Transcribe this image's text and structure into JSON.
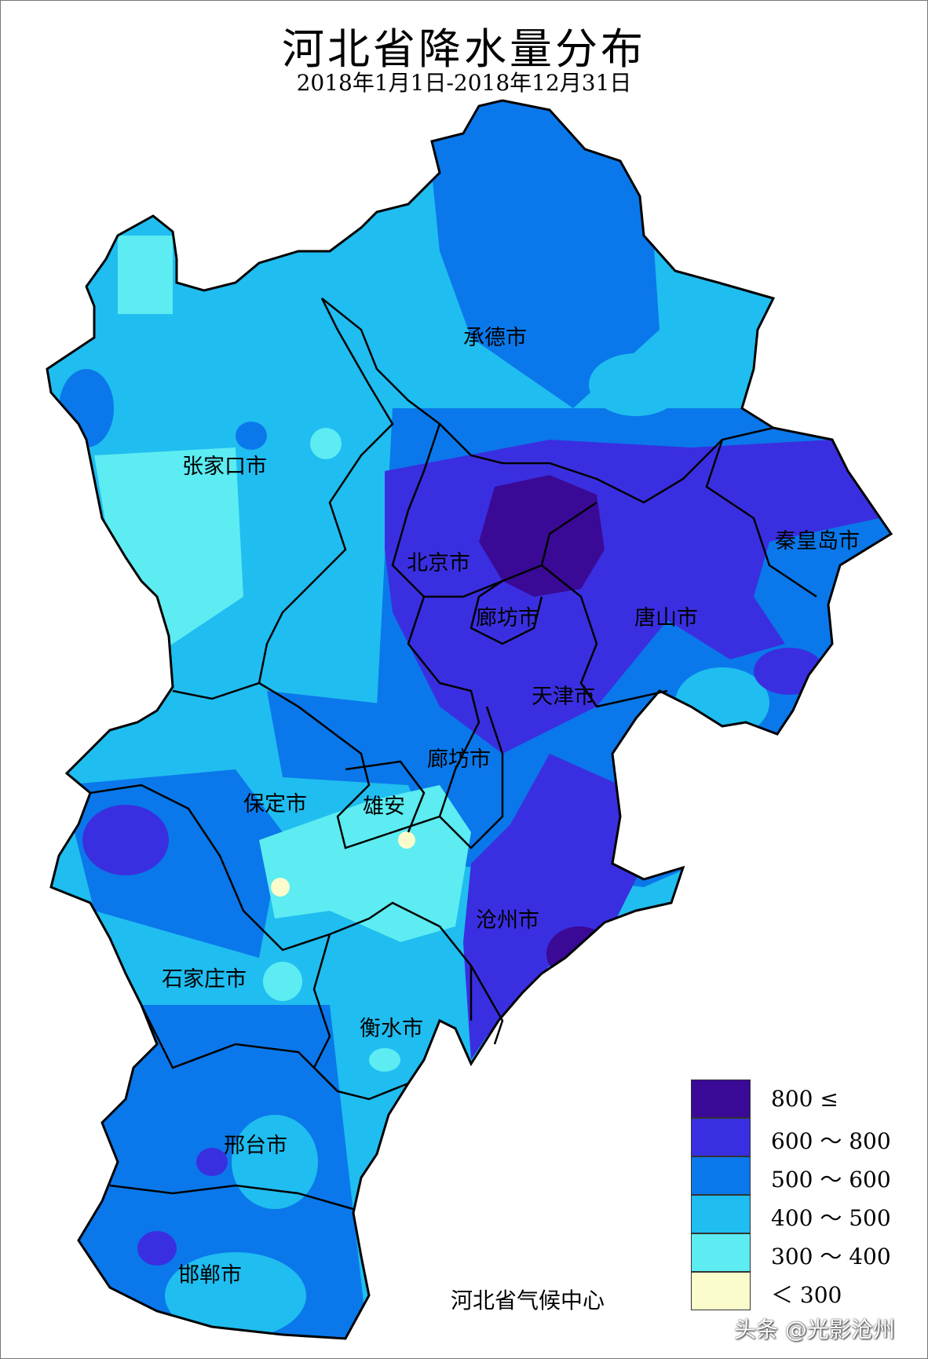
{
  "title": "河北省降水量分布",
  "subtitle": "2018年1月1日-2018年12月31日",
  "colors": {
    "c800plus": "#3a0a96",
    "c600_800": "#3a2fe0",
    "c500_600": "#0a78ea",
    "c400_500": "#20bdf0",
    "c300_400": "#5cecf2",
    "c_lt300": "#fafccc",
    "border": "#000000"
  },
  "cities": [
    {
      "id": "chengde",
      "name": "承德市"
    },
    {
      "id": "zhangjiakou",
      "name": "张家口市"
    },
    {
      "id": "beijing",
      "name": "北京市"
    },
    {
      "id": "qinhuangdao",
      "name": "秦皇岛市"
    },
    {
      "id": "langfang-north",
      "name": "廊坊市"
    },
    {
      "id": "tangshan",
      "name": "唐山市"
    },
    {
      "id": "tianjin",
      "name": "天津市"
    },
    {
      "id": "langfang",
      "name": "廊坊市"
    },
    {
      "id": "baoding",
      "name": "保定市"
    },
    {
      "id": "xiongan",
      "name": "雄安"
    },
    {
      "id": "cangzhou",
      "name": "沧州市"
    },
    {
      "id": "shijiazhuang",
      "name": "石家庄市"
    },
    {
      "id": "hengshui",
      "name": "衡水市"
    },
    {
      "id": "xingtai",
      "name": "邢台市"
    },
    {
      "id": "handan",
      "name": "邯郸市"
    }
  ],
  "legend": [
    {
      "label": "800 ≤",
      "color_key": "c800plus"
    },
    {
      "label": "600 ～ 800",
      "color_key": "c600_800"
    },
    {
      "label": "500 ～ 600",
      "color_key": "c500_600"
    },
    {
      "label": "400 ～ 500",
      "color_key": "c400_500"
    },
    {
      "label": "300 ～ 400",
      "color_key": "c300_400"
    },
    {
      "label": "＜ 300",
      "color_key": "c_lt300"
    }
  ],
  "source": "河北省气候中心",
  "watermark": "头条 @光影沧州"
}
